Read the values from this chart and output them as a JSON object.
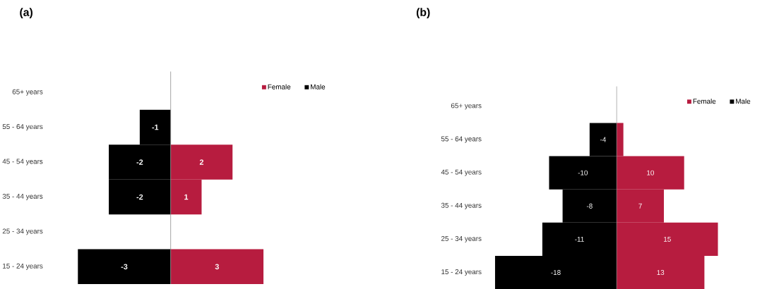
{
  "chart_data": [
    {
      "type": "bar",
      "title": "(a)",
      "orientation": "horizontal",
      "categories": [
        "65+ years",
        "55 - 64 years",
        "45 - 54 years",
        "35 - 44 years",
        "25 - 34 years",
        "15 - 24 years"
      ],
      "series": [
        {
          "name": "Female",
          "color": "#b71c3f",
          "values": [
            null,
            null,
            2,
            1,
            null,
            3
          ]
        },
        {
          "name": "Male",
          "color": "#000000",
          "values": [
            null,
            -1,
            -2,
            -2,
            null,
            -3
          ]
        }
      ],
      "data_labels": true,
      "stacked": true,
      "legend": "top right"
    },
    {
      "type": "bar",
      "title": "(b)",
      "orientation": "horizontal",
      "categories": [
        "65+ years",
        "55 - 64 years",
        "45 - 54 years",
        "35 - 44 years",
        "25 - 34 years",
        "15 - 24 years"
      ],
      "series": [
        {
          "name": "Female",
          "color": "#b71c3f",
          "values": [
            null,
            1,
            10,
            7,
            15,
            13
          ],
          "value_labels": [
            null,
            null,
            "10",
            "7",
            "15",
            "13"
          ]
        },
        {
          "name": "Male",
          "color": "#000000",
          "values": [
            null,
            -4,
            -10,
            -8,
            -11,
            -18
          ],
          "value_labels": [
            null,
            "-4",
            "-10",
            "-8",
            "-11",
            "-18"
          ]
        }
      ],
      "stacked": true,
      "legend": "top right"
    }
  ]
}
